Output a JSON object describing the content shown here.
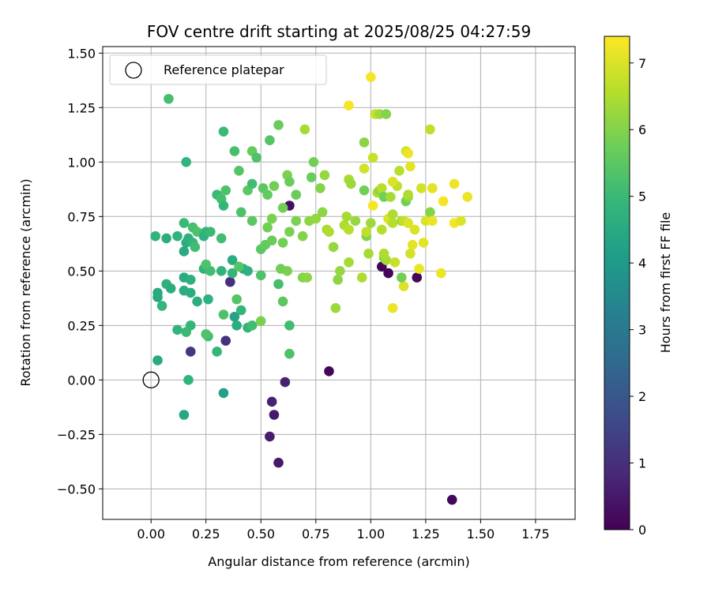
{
  "chart_data": {
    "type": "scatter",
    "title": "FOV centre drift starting at 2025/08/25 04:27:59",
    "xlabel": "Angular distance from reference (arcmin)",
    "ylabel": "Rotation from reference (arcmin)",
    "xlim": [
      -0.22,
      1.93
    ],
    "ylim": [
      -0.64,
      1.53
    ],
    "xticks": [
      "0.00",
      "0.25",
      "0.50",
      "0.75",
      "1.00",
      "1.25",
      "1.50",
      "1.75"
    ],
    "xtick_values": [
      0,
      0.25,
      0.5,
      0.75,
      1.0,
      1.25,
      1.5,
      1.75
    ],
    "yticks": [
      "−0.50",
      "−0.25",
      "0.00",
      "0.25",
      "0.50",
      "0.75",
      "1.00",
      "1.25",
      "1.50"
    ],
    "ytick_values": [
      -0.5,
      -0.25,
      0,
      0.25,
      0.5,
      0.75,
      1.0,
      1.25,
      1.5
    ],
    "grid": true,
    "legend": {
      "position": "top-left",
      "entries": [
        {
          "label": "Reference platepar",
          "marker": "open-circle",
          "x": 0,
          "y": 0
        }
      ]
    },
    "colorbar": {
      "label": "Hours from first FF file",
      "range": [
        0,
        7.4
      ],
      "ticks": [
        "0",
        "1",
        "2",
        "3",
        "4",
        "5",
        "6",
        "7"
      ],
      "tick_values": [
        0,
        1,
        2,
        3,
        4,
        5,
        6,
        7
      ],
      "colormap": "viridis",
      "stops": [
        "#440154",
        "#482878",
        "#3e4a89",
        "#31688e",
        "#26828e",
        "#1f9e89",
        "#35b779",
        "#6ece58",
        "#b5de2b",
        "#fde725"
      ]
    },
    "points": [
      [
        1.05,
        0.52,
        0.1
      ],
      [
        1.08,
        0.49,
        0.1
      ],
      [
        1.21,
        0.47,
        0.1
      ],
      [
        0.81,
        0.04,
        0.1
      ],
      [
        1.37,
        -0.55,
        0.1
      ],
      [
        0.58,
        -0.38,
        0.5
      ],
      [
        0.54,
        -0.26,
        0.6
      ],
      [
        0.56,
        -0.16,
        0.5
      ],
      [
        0.55,
        -0.1,
        0.7
      ],
      [
        0.61,
        -0.01,
        0.7
      ],
      [
        0.63,
        0.8,
        0.3
      ],
      [
        0.36,
        0.45,
        1.0
      ],
      [
        0.34,
        0.18,
        1.1
      ],
      [
        0.18,
        0.13,
        1.2
      ],
      [
        0.33,
        -0.06,
        4.2
      ],
      [
        0.15,
        -0.16,
        4.4
      ],
      [
        0.03,
        0.09,
        4.5
      ],
      [
        0.17,
        0.0,
        4.8
      ],
      [
        0.03,
        0.38,
        4.4
      ],
      [
        0.03,
        0.4,
        4.5
      ],
      [
        0.05,
        0.34,
        4.9
      ],
      [
        0.07,
        0.44,
        4.7
      ],
      [
        0.09,
        0.42,
        4.6
      ],
      [
        0.12,
        0.23,
        4.8
      ],
      [
        0.15,
        0.47,
        4.5
      ],
      [
        0.15,
        0.41,
        4.6
      ],
      [
        0.18,
        0.46,
        4.7
      ],
      [
        0.18,
        0.4,
        4.6
      ],
      [
        0.18,
        0.25,
        4.9
      ],
      [
        0.16,
        0.22,
        5.0
      ],
      [
        0.21,
        0.36,
        4.6
      ],
      [
        0.24,
        0.51,
        4.8
      ],
      [
        0.26,
        0.37,
        4.7
      ],
      [
        0.3,
        0.13,
        4.9
      ],
      [
        0.26,
        0.2,
        5.1
      ],
      [
        0.25,
        0.21,
        5.3
      ],
      [
        0.38,
        0.29,
        4.3
      ],
      [
        0.39,
        0.25,
        4.6
      ],
      [
        0.41,
        0.32,
        4.9
      ],
      [
        0.44,
        0.24,
        4.8
      ],
      [
        0.46,
        0.25,
        5.1
      ],
      [
        0.33,
        0.3,
        5.3
      ],
      [
        0.39,
        0.37,
        5.4
      ],
      [
        0.37,
        0.55,
        4.6
      ],
      [
        0.42,
        0.51,
        4.5
      ],
      [
        0.44,
        0.5,
        4.7
      ],
      [
        0.37,
        0.49,
        4.9
      ],
      [
        0.32,
        0.5,
        4.8
      ],
      [
        0.27,
        0.5,
        5.1
      ],
      [
        0.25,
        0.53,
        5.3
      ],
      [
        0.4,
        0.52,
        5.4
      ],
      [
        0.5,
        0.48,
        5.3
      ],
      [
        0.02,
        0.66,
        4.8
      ],
      [
        0.07,
        0.65,
        4.6
      ],
      [
        0.12,
        0.66,
        4.8
      ],
      [
        0.15,
        0.59,
        4.5
      ],
      [
        0.16,
        0.63,
        4.6
      ],
      [
        0.17,
        0.65,
        4.7
      ],
      [
        0.19,
        0.63,
        4.9
      ],
      [
        0.2,
        0.61,
        5.1
      ],
      [
        0.15,
        0.72,
        5.0
      ],
      [
        0.19,
        0.7,
        5.2
      ],
      [
        0.21,
        0.68,
        5.3
      ],
      [
        0.24,
        0.66,
        4.7
      ],
      [
        0.25,
        0.68,
        4.8
      ],
      [
        0.27,
        0.68,
        5.0
      ],
      [
        0.32,
        0.65,
        5.1
      ],
      [
        0.16,
        1.0,
        4.8
      ],
      [
        0.08,
        1.29,
        5.2
      ],
      [
        0.3,
        0.85,
        5.0
      ],
      [
        0.32,
        0.83,
        5.2
      ],
      [
        0.33,
        0.8,
        4.9
      ],
      [
        0.34,
        0.87,
        5.3
      ],
      [
        0.33,
        1.14,
        5.0
      ],
      [
        0.38,
        1.05,
        5.2
      ],
      [
        0.4,
        0.96,
        5.4
      ],
      [
        0.41,
        0.77,
        5.3
      ],
      [
        0.44,
        0.87,
        5.5
      ],
      [
        0.46,
        0.9,
        5.1
      ],
      [
        0.46,
        0.73,
        5.5
      ],
      [
        0.46,
        1.05,
        5.6
      ],
      [
        0.48,
        1.02,
        5.3
      ],
      [
        0.51,
        0.88,
        5.5
      ],
      [
        0.53,
        0.85,
        5.6
      ],
      [
        0.54,
        1.1,
        5.4
      ],
      [
        0.58,
        1.17,
        5.7
      ],
      [
        0.56,
        0.89,
        5.8
      ],
      [
        0.55,
        0.74,
        5.9
      ],
      [
        0.53,
        0.7,
        5.8
      ],
      [
        0.5,
        0.6,
        5.5
      ],
      [
        0.52,
        0.62,
        5.6
      ],
      [
        0.55,
        0.64,
        5.7
      ],
      [
        0.6,
        0.63,
        5.8
      ],
      [
        0.6,
        0.79,
        5.8
      ],
      [
        0.62,
        0.94,
        5.9
      ],
      [
        0.63,
        0.91,
        5.7
      ],
      [
        0.63,
        0.68,
        5.9
      ],
      [
        0.66,
        0.73,
        5.9
      ],
      [
        0.66,
        0.85,
        5.7
      ],
      [
        0.62,
        0.5,
        5.9
      ],
      [
        0.59,
        0.51,
        5.8
      ],
      [
        0.6,
        0.36,
        5.5
      ],
      [
        0.58,
        0.44,
        5.2
      ],
      [
        0.63,
        0.25,
        5.1
      ],
      [
        0.63,
        0.12,
        5.3
      ],
      [
        0.5,
        0.27,
        5.9
      ],
      [
        0.69,
        0.47,
        6.0
      ],
      [
        0.71,
        0.47,
        6.1
      ],
      [
        0.69,
        0.66,
        6.0
      ],
      [
        0.73,
        0.93,
        5.7
      ],
      [
        0.72,
        0.73,
        6.1
      ],
      [
        0.74,
        1.0,
        5.8
      ],
      [
        0.77,
        0.88,
        6.0
      ],
      [
        0.78,
        0.77,
        6.1
      ],
      [
        0.79,
        0.94,
        6.2
      ],
      [
        0.7,
        1.15,
        6.4
      ],
      [
        0.75,
        0.74,
        6.2
      ],
      [
        0.8,
        0.69,
        6.4
      ],
      [
        0.81,
        0.68,
        6.5
      ],
      [
        0.83,
        0.61,
        6.2
      ],
      [
        0.84,
        0.33,
        6.3
      ],
      [
        0.85,
        0.46,
        6.1
      ],
      [
        0.86,
        0.5,
        6.2
      ],
      [
        0.88,
        0.71,
        6.5
      ],
      [
        0.89,
        0.75,
        6.4
      ],
      [
        0.9,
        0.69,
        6.6
      ],
      [
        0.9,
        0.92,
        6.4
      ],
      [
        0.91,
        0.9,
        6.3
      ],
      [
        0.9,
        0.54,
        6.4
      ],
      [
        0.93,
        0.73,
        6.2
      ],
      [
        0.97,
        1.09,
        6.1
      ],
      [
        0.97,
        0.87,
        5.8
      ],
      [
        0.98,
        0.66,
        6.0
      ],
      [
        0.98,
        0.68,
        6.7
      ],
      [
        0.99,
        0.58,
        6.4
      ],
      [
        0.97,
        0.97,
        6.9
      ],
      [
        0.96,
        0.47,
        6.5
      ],
      [
        1.0,
        0.72,
        6.3
      ],
      [
        1.01,
        1.02,
        6.8
      ],
      [
        1.02,
        1.22,
        6.8
      ],
      [
        1.03,
        0.86,
        6.5
      ],
      [
        1.04,
        0.87,
        6.1
      ],
      [
        1.04,
        1.22,
        6.3
      ],
      [
        1.05,
        0.88,
        6.6
      ],
      [
        1.06,
        0.84,
        5.8
      ],
      [
        1.06,
        0.56,
        6.1
      ],
      [
        1.07,
        0.55,
        6.4
      ],
      [
        1.09,
        0.84,
        6.4
      ],
      [
        1.09,
        0.73,
        6.9
      ],
      [
        1.05,
        0.69,
        6.6
      ],
      [
        1.06,
        0.58,
        6.5
      ],
      [
        1.07,
        1.22,
        6.0
      ],
      [
        1.08,
        0.74,
        7.0
      ],
      [
        1.1,
        0.76,
        6.5
      ],
      [
        1.1,
        0.72,
        6.6
      ],
      [
        1.11,
        0.54,
        6.8
      ],
      [
        1.12,
        0.89,
        6.7
      ],
      [
        1.13,
        0.96,
        6.6
      ],
      [
        1.14,
        0.73,
        6.4
      ],
      [
        1.15,
        0.43,
        7.0
      ],
      [
        1.15,
        0.73,
        6.7
      ],
      [
        1.16,
        0.82,
        5.8
      ],
      [
        1.17,
        0.84,
        6.2
      ],
      [
        1.17,
        0.85,
        6.5
      ],
      [
        1.16,
        1.05,
        6.9
      ],
      [
        1.17,
        0.72,
        7.0
      ],
      [
        1.17,
        1.04,
        7.2
      ],
      [
        1.18,
        0.98,
        7.1
      ],
      [
        1.18,
        0.58,
        6.9
      ],
      [
        1.19,
        0.62,
        7.1
      ],
      [
        1.2,
        0.69,
        7.0
      ],
      [
        1.14,
        0.47,
        5.8
      ],
      [
        1.1,
        0.33,
        7.2
      ],
      [
        1.1,
        0.91,
        7.0
      ],
      [
        1.22,
        0.51,
        7.2
      ],
      [
        1.23,
        0.88,
        6.9
      ],
      [
        1.24,
        0.63,
        7.1
      ],
      [
        1.25,
        0.73,
        7.0
      ],
      [
        1.27,
        0.77,
        6.0
      ],
      [
        1.27,
        1.15,
        6.7
      ],
      [
        1.28,
        0.73,
        7.2
      ],
      [
        1.28,
        0.88,
        7.0
      ],
      [
        1.28,
        0.88,
        7.1
      ],
      [
        1.32,
        0.49,
        7.2
      ],
      [
        1.33,
        0.82,
        7.3
      ],
      [
        1.38,
        0.9,
        7.2
      ],
      [
        1.38,
        0.72,
        7.3
      ],
      [
        1.41,
        0.73,
        7.0
      ],
      [
        1.44,
        0.84,
        7.2
      ],
      [
        0.9,
        1.26,
        7.3
      ],
      [
        1.0,
        1.39,
        7.3
      ],
      [
        1.01,
        0.8,
        7.3
      ]
    ]
  }
}
